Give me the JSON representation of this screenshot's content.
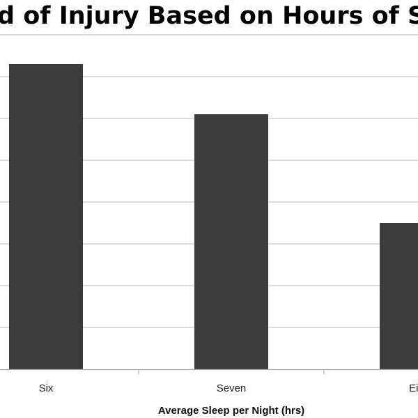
{
  "chart_data": {
    "type": "bar",
    "title": "...ed of Injury Based on Hours of Sleep p...",
    "title_visible": "d of Injury Based on Hours of Sleep p",
    "categories": [
      "Six",
      "Seven",
      "Eig"
    ],
    "values": [
      7.3,
      6.1,
      3.5
    ],
    "xlabel": "Average Sleep per Night (hrs)",
    "ylabel": "",
    "ylim": [
      0,
      8
    ],
    "grid": true,
    "legend": "none",
    "colors": {
      "bar": "#3c3c3c",
      "grid": "#c8c8c8",
      "axis": "#a8a8a8"
    }
  }
}
